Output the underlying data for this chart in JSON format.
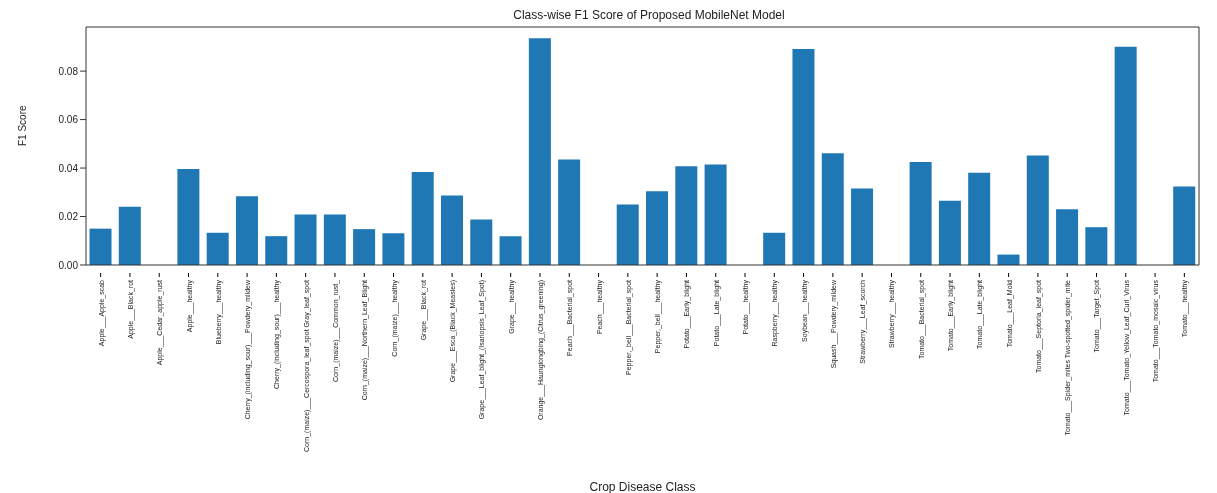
{
  "chart_data": {
    "type": "bar",
    "title": "Class-wise F1 Score of Proposed MobileNet Model",
    "xlabel": "Crop Disease Class",
    "ylabel": "F1 Score",
    "categories": [
      "Apple___Apple_scab",
      "Apple___Black_rot",
      "Apple___Cedar_apple_rust",
      "Apple___healthy",
      "Blueberry___healthy",
      "Cherry_(including_sour)___Powdery_mildew",
      "Cherry_(including_sour)___healthy",
      "Corn_(maize)___Cercospora_leaf_spot Gray_leaf_spot",
      "Corn_(maize)___Common_rust_",
      "Corn_(maize)___Northern_Leaf_Blight",
      "Corn_(maize)___healthy",
      "Grape___Black_rot",
      "Grape___Esca_(Black_Measles)",
      "Grape___Leaf_blight_(Isariopsis_Leaf_Spot)",
      "Grape___healthy",
      "Orange___Haunglongbing_(Citrus_greening)",
      "Peach___Bacterial_spot",
      "Peach___healthy",
      "Pepper,_bell___Bacterial_spot",
      "Pepper,_bell___healthy",
      "Potato___Early_blight",
      "Potato___Late_blight",
      "Potato___healthy",
      "Raspberry___healthy",
      "Soybean___healthy",
      "Squash___Powdery_mildew",
      "Strawberry___Leaf_scorch",
      "Strawberry___healthy",
      "Tomato___Bacterial_spot",
      "Tomato___Early_blight",
      "Tomato___Late_blight",
      "Tomato___Leaf_Mold",
      "Tomato___Septoria_leaf_spot",
      "Tomato___Spider_mites Two-spotted_spider_mite",
      "Tomato___Target_Spot",
      "Tomato___Tomato_Yellow_Leaf_Curl_Virus",
      "Tomato___Tomato_mosaic_virus",
      "Tomato___healthy"
    ],
    "values": [
      0.015,
      0.024,
      0,
      0.0396,
      0.0133,
      0.0284,
      0.0119,
      0.0208,
      0.0208,
      0.0148,
      0.0131,
      0.0384,
      0.0287,
      0.0188,
      0.0119,
      0.0936,
      0.0435,
      0,
      0.025,
      0.0304,
      0.0407,
      0.0415,
      0,
      0.0133,
      0.0891,
      0.0461,
      0.0316,
      0,
      0.0425,
      0.0265,
      0.0381,
      0.0043,
      0.0452,
      0.023,
      0.0156,
      0.09,
      0,
      0.0324
    ],
    "color": "#1f77b4",
    "ylim": [
      0,
      0.0982
    ],
    "yticks": [
      {
        "value": 0,
        "label": "0.00"
      },
      {
        "value": 0.02,
        "label": "0.02"
      },
      {
        "value": 0.04,
        "label": "0.04"
      },
      {
        "value": 0.06,
        "label": "0.06"
      },
      {
        "value": 0.08,
        "label": "0.08"
      }
    ],
    "grid": false,
    "legend": false
  }
}
